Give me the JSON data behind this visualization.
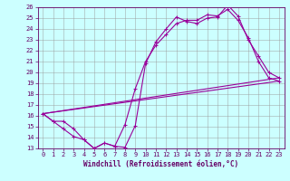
{
  "xlabel": "Windchill (Refroidissement éolien,°C)",
  "bg_color": "#ccffff",
  "line_color": "#990099",
  "xlim": [
    -0.5,
    23.5
  ],
  "ylim": [
    13,
    26
  ],
  "xticks": [
    0,
    1,
    2,
    3,
    4,
    5,
    6,
    7,
    8,
    9,
    10,
    11,
    12,
    13,
    14,
    15,
    16,
    17,
    18,
    19,
    20,
    21,
    22,
    23
  ],
  "yticks": [
    13,
    14,
    15,
    16,
    17,
    18,
    19,
    20,
    21,
    22,
    23,
    24,
    25,
    26
  ],
  "line1_x": [
    0,
    1,
    2,
    3,
    4,
    5,
    6,
    7,
    8,
    9,
    10,
    11,
    12,
    13,
    14,
    15,
    16,
    17,
    18,
    19,
    20,
    21,
    22,
    23
  ],
  "line1_y": [
    16.2,
    15.5,
    15.5,
    14.8,
    13.8,
    13.0,
    13.5,
    13.2,
    13.1,
    15.1,
    20.8,
    22.8,
    24.0,
    25.1,
    24.7,
    24.5,
    25.0,
    25.1,
    26.2,
    25.2,
    23.0,
    21.5,
    20.0,
    19.5
  ],
  "line2_x": [
    0,
    1,
    2,
    3,
    4,
    5,
    6,
    7,
    8,
    9,
    10,
    11,
    12,
    13,
    14,
    15,
    16,
    17,
    18,
    19,
    20,
    21,
    22,
    23
  ],
  "line2_y": [
    16.2,
    15.5,
    14.8,
    14.1,
    13.8,
    13.0,
    13.5,
    13.2,
    15.2,
    18.5,
    21.0,
    22.5,
    23.5,
    24.5,
    24.8,
    24.8,
    25.3,
    25.2,
    25.8,
    24.8,
    23.2,
    21.0,
    19.5,
    19.2
  ],
  "line3_x": [
    0,
    23
  ],
  "line3_y": [
    16.2,
    19.2
  ],
  "line4_x": [
    0,
    23
  ],
  "line4_y": [
    16.2,
    19.5
  ],
  "grid_color": "#999999",
  "tick_fontsize": 5.0,
  "xlabel_fontsize": 5.5,
  "tick_color": "#660066",
  "spine_color": "#660066"
}
